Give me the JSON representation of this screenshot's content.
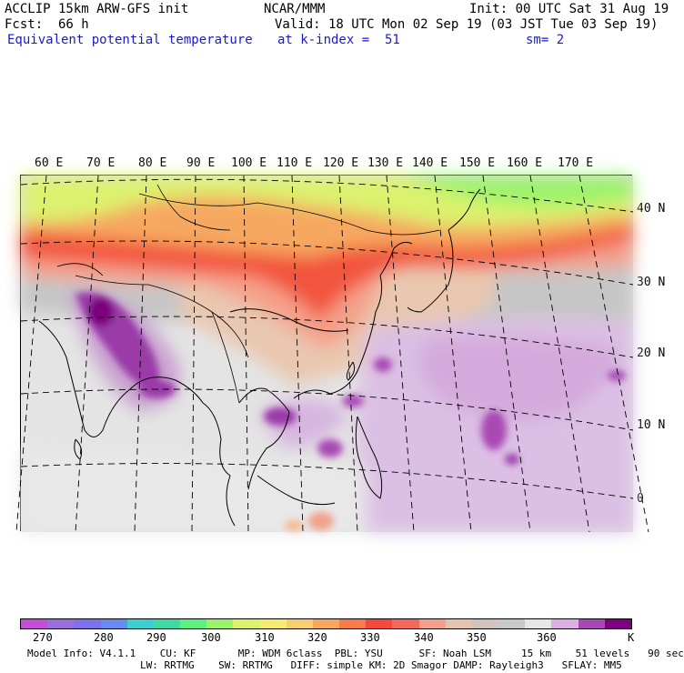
{
  "header": {
    "title": "ACCLIP 15km ARW-GFS init",
    "org": "NCAR/MMM",
    "init": "Init: 00 UTC Sat 31 Aug 19",
    "fcst_label": "Fcst:",
    "fcst_value": "66 h",
    "valid": "Valid: 18 UTC Mon 02 Sep 19 (03 JST Tue 03 Sep 19)",
    "field": "Equivalent potential temperature",
    "level": "at k-index =  51",
    "smooth": "sm= 2"
  },
  "longitudes": [
    "60 E",
    "70 E",
    "80 E",
    "90 E",
    "100 E",
    "110 E",
    "120 E",
    "130 E",
    "140 E",
    "150 E",
    "160 E",
    "170 E"
  ],
  "latitudes": [
    "40 N",
    "30 N",
    "20 N",
    "10 N",
    "0"
  ],
  "colorbar": {
    "colors": [
      "#c34fd8",
      "#9a6edb",
      "#7d72ee",
      "#6a8cf0",
      "#3dcfcf",
      "#44d8a4",
      "#5ef080",
      "#9cf26c",
      "#dcf26e",
      "#f6ec74",
      "#f6cf74",
      "#f6a860",
      "#f67c50",
      "#f24a3c",
      "#f26a5c",
      "#f0a28c",
      "#e2c4b0",
      "#d0c4bc",
      "#c8c8c8",
      "#e6e6e6",
      "#dcb0e0",
      "#a848b4",
      "#7a007e"
    ],
    "labels": [
      "270",
      "280",
      "290",
      "300",
      "310",
      "320",
      "330",
      "340",
      "350",
      "360"
    ],
    "unit": "K"
  },
  "footer": {
    "line1": "Model Info: V4.1.1    CU: KF       MP: WDM 6class  PBL: YSU      SF: Noah LSM     15 km    51 levels   90 sec",
    "line2": "LW: RRTMG    SW: RRTMG   DIFF: simple KM: 2D Smagor DAMP: Rayleigh3   SFLAY: MM5"
  }
}
